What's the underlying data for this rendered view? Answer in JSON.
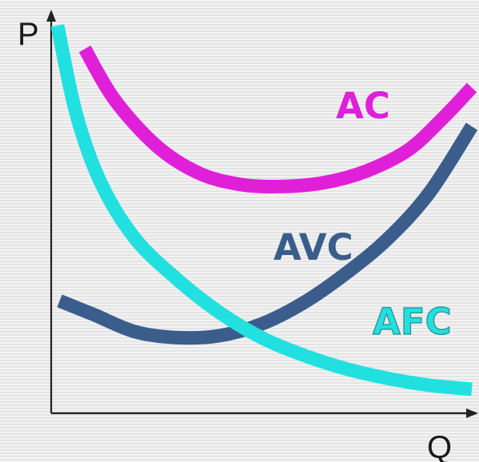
{
  "chart_data": {
    "type": "line",
    "title": "",
    "xlabel": "Q",
    "ylabel": "P",
    "xlim": [
      0,
      10
    ],
    "ylim": [
      0,
      10
    ],
    "grid": false,
    "legend": "none",
    "series": [
      {
        "name": "AC",
        "color": "#e020d8",
        "x": [
          0.8,
          1.5,
          2.5,
          3.5,
          4.5,
          5.5,
          6.5,
          7.5,
          8.5,
          9.3,
          10.0
        ],
        "y": [
          9.4,
          8.1,
          6.9,
          6.2,
          5.9,
          5.85,
          5.95,
          6.25,
          6.8,
          7.6,
          8.4
        ]
      },
      {
        "name": "AVC",
        "color": "#3a5d8c",
        "x": [
          0.2,
          1.0,
          2.0,
          3.0,
          4.0,
          5.0,
          6.0,
          7.0,
          8.0,
          9.0,
          10.0
        ],
        "y": [
          2.9,
          2.55,
          2.1,
          1.95,
          2.0,
          2.3,
          2.85,
          3.6,
          4.5,
          5.7,
          7.4
        ]
      },
      {
        "name": "AFC",
        "color": "#22e0e0",
        "x": [
          0.15,
          0.6,
          1.2,
          2.0,
          3.0,
          4.0,
          5.0,
          6.0,
          7.0,
          8.0,
          9.0,
          10.0
        ],
        "y": [
          10.0,
          7.7,
          5.9,
          4.5,
          3.45,
          2.6,
          1.95,
          1.5,
          1.15,
          0.9,
          0.72,
          0.62
        ]
      }
    ]
  }
}
